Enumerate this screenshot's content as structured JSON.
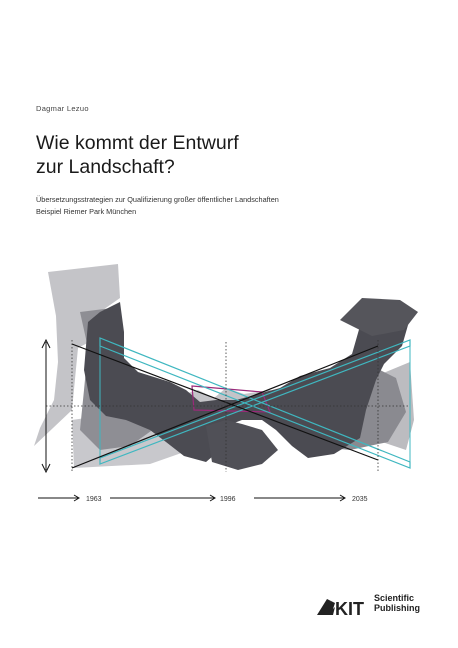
{
  "author": "Dagmar Lezuo",
  "title": {
    "line1": "Wie kommt der Entwurf",
    "line2": "zur Landschaft?"
  },
  "subtitle": {
    "line1": "Übersetzungsstrategien zur Qualifizierung großer öffentlicher Landschaften",
    "line2": "Beispiel Riemer Park München"
  },
  "timeline": {
    "years": [
      "1963",
      "1996",
      "2035"
    ]
  },
  "publisher": {
    "logo": "KIT",
    "line1": "Scientific",
    "line2": "Publishing"
  },
  "colors": {
    "light_gray": "#b8b8bc",
    "mid_gray": "#8a8a8f",
    "dark_gray": "#4a4a50",
    "cyan": "#3fb7c0",
    "magenta": "#9b2a7a"
  }
}
